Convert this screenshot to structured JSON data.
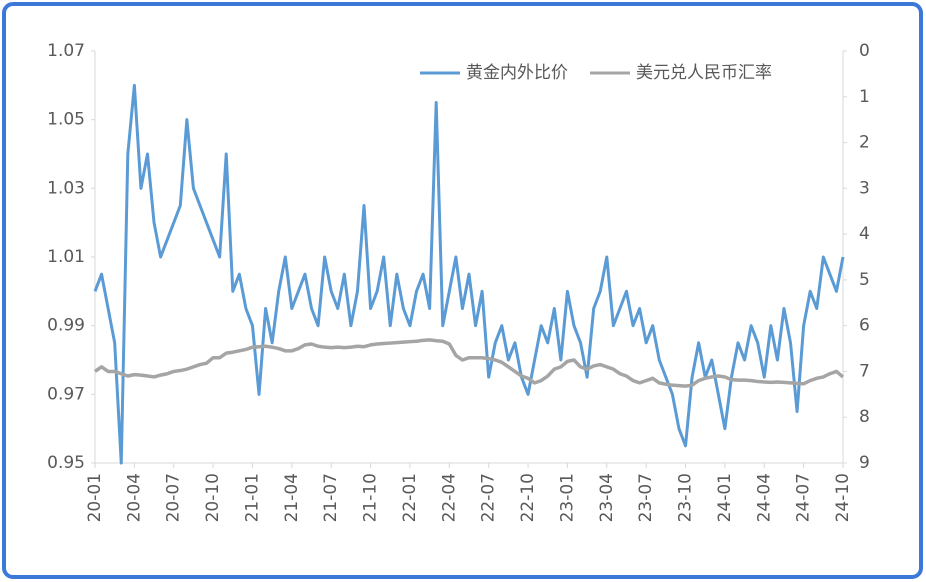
{
  "chart_data": {
    "type": "line",
    "categories": [
      "20-01",
      null,
      null,
      null,
      null,
      null,
      "20-04",
      null,
      null,
      null,
      null,
      null,
      "20-07",
      null,
      null,
      null,
      null,
      null,
      "20-10",
      null,
      null,
      null,
      null,
      null,
      "21-01",
      null,
      null,
      null,
      null,
      null,
      "21-04",
      null,
      null,
      null,
      null,
      null,
      "21-07",
      null,
      null,
      null,
      null,
      null,
      "21-10",
      null,
      null,
      null,
      null,
      null,
      "22-01",
      null,
      null,
      null,
      null,
      null,
      "22-04",
      null,
      null,
      null,
      null,
      null,
      "22-07",
      null,
      null,
      null,
      null,
      null,
      "22-10",
      null,
      null,
      null,
      null,
      null,
      "23-01",
      null,
      null,
      null,
      null,
      null,
      "23-04",
      null,
      null,
      null,
      null,
      null,
      "23-07",
      null,
      null,
      null,
      null,
      null,
      "23-10",
      null,
      null,
      null,
      null,
      null,
      "24-01",
      null,
      null,
      null,
      null,
      null,
      "24-04",
      null,
      null,
      null,
      null,
      null,
      "24-07",
      null,
      null,
      null,
      null,
      null,
      "24-10"
    ],
    "series": [
      {
        "name": "黄金内外比价",
        "color": "#5b9bd5",
        "values": [
          1.0,
          1.005,
          0.995,
          0.985,
          0.95,
          1.04,
          1.06,
          1.03,
          1.04,
          1.02,
          1.01,
          1.015,
          1.02,
          1.025,
          1.05,
          1.03,
          1.025,
          1.02,
          1.015,
          1.01,
          1.04,
          1.0,
          1.005,
          0.995,
          0.99,
          0.97,
          0.995,
          0.985,
          1.0,
          1.01,
          0.995,
          1.0,
          1.005,
          0.995,
          0.99,
          1.01,
          1.0,
          0.995,
          1.005,
          0.99,
          1.0,
          1.025,
          0.995,
          1.0,
          1.01,
          0.99,
          1.005,
          0.995,
          0.99,
          1.0,
          1.005,
          0.995,
          1.055,
          0.99,
          1.0,
          1.01,
          0.995,
          1.005,
          0.99,
          1.0,
          0.975,
          0.985,
          0.99,
          0.98,
          0.985,
          0.975,
          0.97,
          0.98,
          0.99,
          0.985,
          0.995,
          0.98,
          1.0,
          0.99,
          0.985,
          0.975,
          0.995,
          1.0,
          1.01,
          0.99,
          0.995,
          1.0,
          0.99,
          0.995,
          0.985,
          0.99,
          0.98,
          0.975,
          0.97,
          0.96,
          0.955,
          0.975,
          0.985,
          0.975,
          0.98,
          0.97,
          0.96,
          0.975,
          0.985,
          0.98,
          0.99,
          0.985,
          0.975,
          0.99,
          0.98,
          0.995,
          0.985,
          0.965,
          0.99,
          1.0,
          0.995,
          1.01,
          1.005,
          1.0,
          1.01
        ]
      },
      {
        "name": "美元兑人民币汇率",
        "color": "#a5a5a5",
        "axis": "y2",
        "values": [
          7.0,
          6.9,
          7.0,
          7.0,
          7.05,
          7.1,
          7.07,
          7.08,
          7.1,
          7.12,
          7.08,
          7.05,
          7.0,
          6.98,
          6.95,
          6.9,
          6.85,
          6.82,
          6.7,
          6.7,
          6.6,
          6.58,
          6.55,
          6.52,
          6.47,
          6.46,
          6.45,
          6.47,
          6.5,
          6.55,
          6.55,
          6.5,
          6.42,
          6.4,
          6.45,
          6.47,
          6.48,
          6.47,
          6.48,
          6.47,
          6.45,
          6.46,
          6.42,
          6.4,
          6.39,
          6.38,
          6.37,
          6.36,
          6.35,
          6.34,
          6.32,
          6.31,
          6.33,
          6.34,
          6.4,
          6.65,
          6.75,
          6.7,
          6.7,
          6.7,
          6.72,
          6.75,
          6.8,
          6.9,
          7.0,
          7.1,
          7.15,
          7.25,
          7.2,
          7.1,
          6.95,
          6.9,
          6.78,
          6.75,
          6.9,
          6.95,
          6.88,
          6.85,
          6.9,
          6.95,
          7.05,
          7.1,
          7.2,
          7.25,
          7.2,
          7.15,
          7.25,
          7.28,
          7.3,
          7.31,
          7.32,
          7.3,
          7.2,
          7.15,
          7.12,
          7.1,
          7.12,
          7.18,
          7.19,
          7.19,
          7.2,
          7.22,
          7.23,
          7.24,
          7.23,
          7.24,
          7.25,
          7.26,
          7.27,
          7.2,
          7.15,
          7.12,
          7.05,
          7.0,
          7.12
        ]
      }
    ],
    "ylim": [
      0.95,
      1.07
    ],
    "yticks": [
      0.95,
      0.97,
      0.99,
      1.01,
      1.03,
      1.05,
      1.07
    ],
    "y2lim": [
      9,
      0
    ],
    "y2ticks": [
      0,
      1,
      2,
      3,
      4,
      5,
      6,
      7,
      8,
      9
    ],
    "legend": "top-right"
  }
}
